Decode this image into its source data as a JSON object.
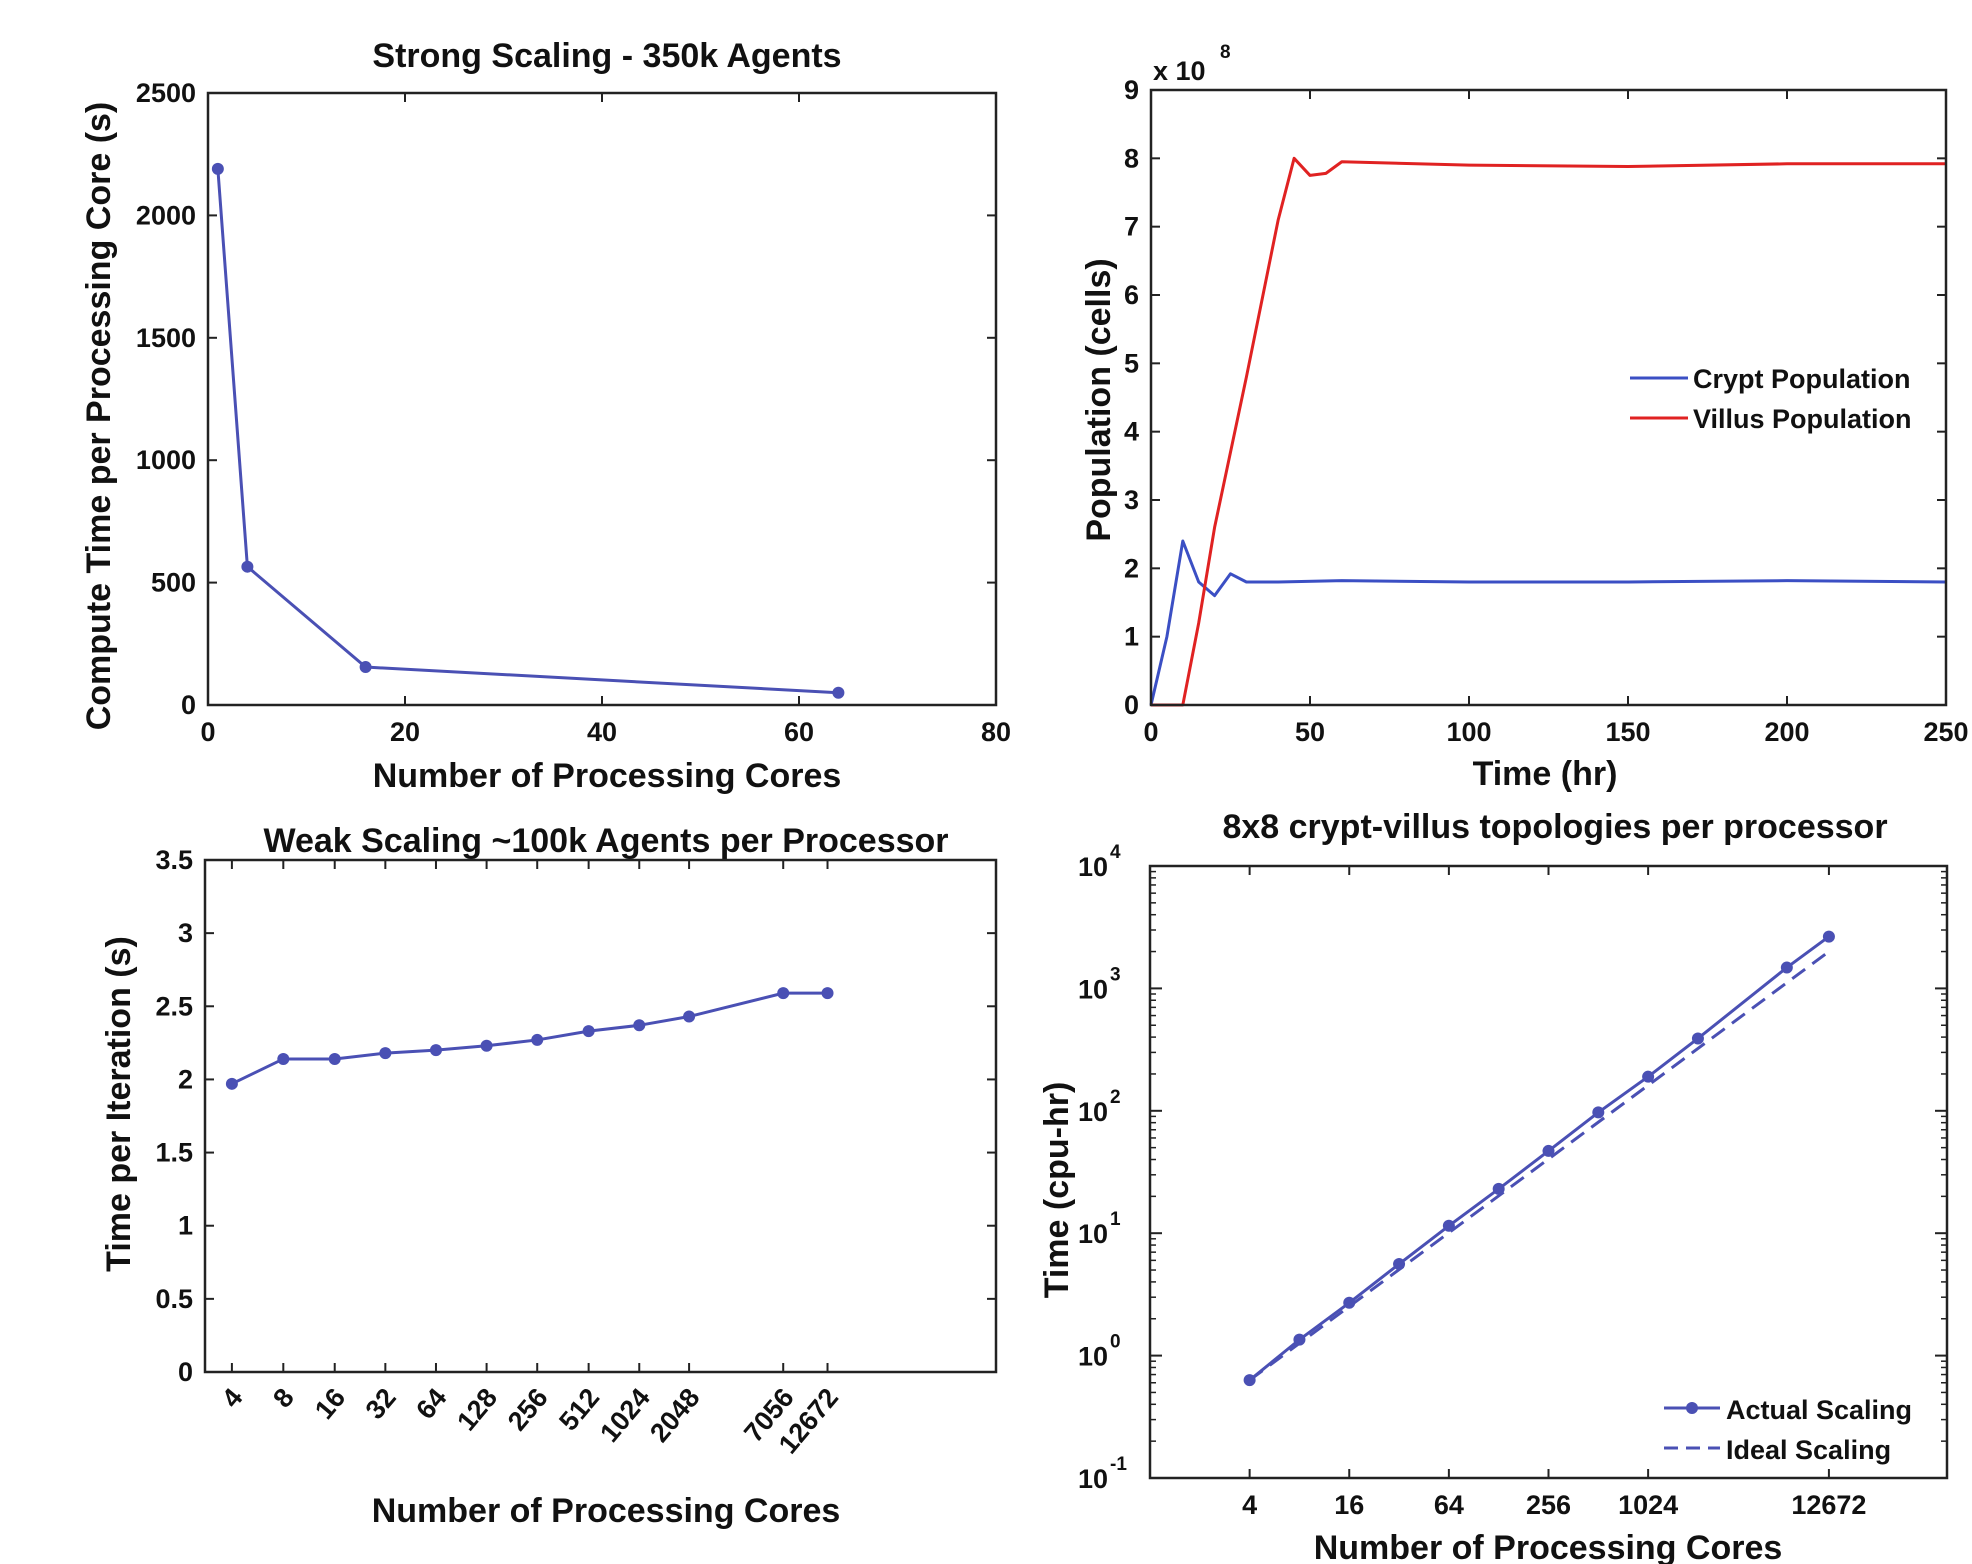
{
  "chart_data": [
    {
      "type": "line",
      "title": "Strong Scaling - 350k Agents",
      "xlabel": "Number of Processing Cores",
      "ylabel": "Compute Time per Processing Core (s)",
      "xlim": [
        0,
        80
      ],
      "ylim": [
        0,
        2500
      ],
      "xticks": [
        "0",
        "20",
        "40",
        "60",
        "80"
      ],
      "yticks": [
        "0",
        "500",
        "1000",
        "1500",
        "2000",
        "2500"
      ],
      "grid": false,
      "color": "#4a50b4",
      "series": [
        {
          "x": [
            1,
            4,
            16,
            64
          ],
          "y": [
            2190,
            565,
            155,
            50
          ]
        }
      ]
    },
    {
      "type": "line",
      "title": "",
      "xlabel": "Time (hr)",
      "ylabel": "Population (cells)",
      "xlim": [
        0,
        250
      ],
      "ylim": [
        0,
        9
      ],
      "y_multiplier": "x 10",
      "y_exponent": "8",
      "xticks": [
        "0",
        "50",
        "100",
        "150",
        "200",
        "250"
      ],
      "yticks": [
        "0",
        "1",
        "2",
        "3",
        "4",
        "5",
        "6",
        "7",
        "8",
        "9"
      ],
      "legend_position": "center-right",
      "grid": false,
      "series": [
        {
          "name": "Crypt Population",
          "color": "#3b4fc4",
          "x": [
            0,
            5,
            10,
            15,
            20,
            25,
            30,
            40,
            60,
            100,
            150,
            200,
            250
          ],
          "y": [
            0,
            1.0,
            2.4,
            1.8,
            1.6,
            1.92,
            1.8,
            1.8,
            1.82,
            1.8,
            1.8,
            1.82,
            1.8
          ]
        },
        {
          "name": "Villus Population",
          "color": "#e02222",
          "x": [
            0,
            10,
            15,
            20,
            30,
            40,
            45,
            50,
            55,
            60,
            100,
            150,
            200,
            250
          ],
          "y": [
            0,
            0,
            1.2,
            2.6,
            4.8,
            7.1,
            8.0,
            7.75,
            7.78,
            7.95,
            7.9,
            7.88,
            7.92,
            7.92
          ]
        }
      ]
    },
    {
      "type": "line",
      "title": "Weak Scaling ~100k Agents per Processor",
      "xlabel": "Number of Processing Cores",
      "ylabel": "Time per Iteration (s)",
      "ylim": [
        0,
        3.5
      ],
      "yticks": [
        "0",
        "0.5",
        "1",
        "1.5",
        "2",
        "2.5",
        "3",
        "3.5"
      ],
      "categories": [
        "4",
        "8",
        "16",
        "32",
        "64",
        "128",
        "256",
        "512",
        "1024",
        "2048",
        "7056",
        "12672"
      ],
      "grid": false,
      "color": "#4a50b4",
      "series": [
        {
          "y": [
            1.97,
            2.14,
            2.14,
            2.18,
            2.2,
            2.23,
            2.27,
            2.33,
            2.37,
            2.43,
            2.59,
            2.59
          ]
        }
      ]
    },
    {
      "type": "line",
      "title": "8x8 crypt-villus topologies per processor",
      "xlabel": "Number of Processing Cores",
      "ylabel": "Time (cpu-hr)",
      "xscale": "log",
      "yscale": "log",
      "ylim": [
        0.1,
        10000
      ],
      "xticks": [
        "4",
        "16",
        "64",
        "256",
        "1024",
        "12672"
      ],
      "ytick_base": "10",
      "ytick_exponents": [
        "-1",
        "0",
        "1",
        "2",
        "3",
        "4"
      ],
      "legend_position": "bottom-right",
      "grid": false,
      "color": "#4a50b4",
      "series": [
        {
          "name": "Actual Scaling",
          "x": [
            4,
            8,
            16,
            32,
            64,
            128,
            256,
            512,
            1024,
            2048,
            7056,
            12672
          ],
          "y": [
            0.63,
            1.35,
            2.7,
            5.6,
            11.5,
            23,
            47,
            97,
            190,
            390,
            1480,
            2650
          ]
        },
        {
          "name": "Ideal Scaling",
          "x": [
            4,
            12672
          ],
          "y": [
            0.63,
            2000
          ]
        }
      ]
    }
  ]
}
